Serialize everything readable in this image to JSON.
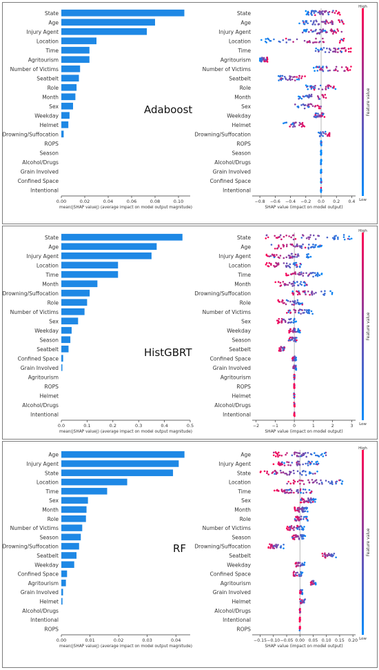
{
  "feature_colorbar": {
    "high": "High",
    "low": "Low",
    "label": "Feature value"
  },
  "colors": {
    "bar": "#1e88e5",
    "high": "#ff0052",
    "low": "#008bfb"
  },
  "chart_data": [
    {
      "type": "bar",
      "orientation": "horizontal",
      "model_label": "Adaboost",
      "categories": [
        "State",
        "Age",
        "Injury Agent",
        "Location",
        "Time",
        "Agritourism",
        "Number of Victims",
        "Seatbelt",
        "Role",
        "Month",
        "Sex",
        "Weekday",
        "Helmet",
        "Drowning/Suffocation",
        "ROPS",
        "Season",
        "Alcohol/Drugs",
        "Grain Involved",
        "Confined Space",
        "Intentional"
      ],
      "values": [
        0.105,
        0.08,
        0.073,
        0.03,
        0.024,
        0.024,
        0.016,
        0.015,
        0.013,
        0.012,
        0.01,
        0.007,
        0.006,
        0.002,
        0,
        0,
        0,
        0,
        0,
        0
      ],
      "xlim": [
        0,
        0.11
      ],
      "xticks": [
        "0.00",
        "0.02",
        "0.04",
        "0.06",
        "0.08",
        "0.10"
      ],
      "xtick_values": [
        0,
        0.02,
        0.04,
        0.06,
        0.08,
        0.1
      ],
      "xlabel": "mean(|SHAP value|) (average impact on model output magnitude)"
    },
    {
      "type": "scatter",
      "subtype": "beeswarm",
      "model_label": "Adaboost",
      "categories": [
        "State",
        "Age",
        "Injury Agent",
        "Location",
        "Time",
        "Agritourism",
        "Number of Victims",
        "Seatbelt",
        "Role",
        "Month",
        "Sex",
        "Weekday",
        "Helmet",
        "Drowning/Suffocation",
        "ROPS",
        "Season",
        "Alcohol/Drugs",
        "Grain Involved",
        "Confined Space",
        "Intentional"
      ],
      "spread": [
        [
          -0.2,
          0.25
        ],
        [
          -0.3,
          0.3
        ],
        [
          -0.25,
          0.28
        ],
        [
          -0.8,
          0.3
        ],
        [
          -0.1,
          0.4
        ],
        [
          -0.8,
          -0.7
        ],
        [
          -0.1,
          0.4
        ],
        [
          -0.6,
          -0.2
        ],
        [
          -0.2,
          0.2
        ],
        [
          -0.3,
          0.1
        ],
        [
          -0.35,
          0.0
        ],
        [
          -0.1,
          0.05
        ],
        [
          -0.5,
          -0.2
        ],
        [
          -0.05,
          0.12
        ],
        [
          0,
          0
        ],
        [
          0,
          0
        ],
        [
          0,
          0
        ],
        [
          0,
          0
        ],
        [
          0,
          0
        ],
        [
          0,
          0
        ]
      ],
      "xlim": [
        -0.9,
        0.45
      ],
      "xticks": [
        "−0.8",
        "−0.6",
        "−0.4",
        "−0.2",
        "0.0",
        "0.2",
        "0.4"
      ],
      "xtick_values": [
        -0.8,
        -0.6,
        -0.4,
        -0.2,
        0,
        0.2,
        0.4
      ],
      "xlabel": "SHAP value (impact on model output)"
    },
    {
      "type": "bar",
      "orientation": "horizontal",
      "model_label": "HistGBRT",
      "categories": [
        "State",
        "Age",
        "Injury Agent",
        "Location",
        "Time",
        "Month",
        "Drowning/Suffocation",
        "Role",
        "Number of Victims",
        "Sex",
        "Weekday",
        "Season",
        "Seatbelt",
        "Confined Space",
        "Grain Involved",
        "Agritourism",
        "ROPS",
        "Helmet",
        "Alcohol/Drugs",
        "Intentional"
      ],
      "values": [
        0.47,
        0.37,
        0.35,
        0.22,
        0.22,
        0.14,
        0.11,
        0.1,
        0.09,
        0.065,
        0.04,
        0.035,
        0.028,
        0.007,
        0.004,
        0,
        0,
        0,
        0,
        0
      ],
      "xlim": [
        0,
        0.5
      ],
      "xticks": [
        "0.0",
        "0.1",
        "0.2",
        "0.3",
        "0.4",
        "0.5"
      ],
      "xtick_values": [
        0,
        0.1,
        0.2,
        0.3,
        0.4,
        0.5
      ],
      "xlabel": "mean(|SHAP value|) (average impact on model output magnitude)"
    },
    {
      "type": "scatter",
      "subtype": "beeswarm",
      "model_label": "HistGBRT",
      "categories": [
        "State",
        "Age",
        "Injury Agent",
        "Location",
        "Time",
        "Month",
        "Drowning/Suffocation",
        "Role",
        "Number of Victims",
        "Sex",
        "Weekday",
        "Season",
        "Seatbelt",
        "Confined Space",
        "Grain Involved",
        "Agritourism",
        "ROPS",
        "Helmet",
        "Alcohol/Drugs",
        "Intentional"
      ],
      "spread": [
        [
          -1.5,
          3.0
        ],
        [
          -1.2,
          1.5
        ],
        [
          -1.5,
          1.0
        ],
        [
          -1.5,
          0.4
        ],
        [
          -0.5,
          1.5
        ],
        [
          -1.0,
          0.7
        ],
        [
          -0.2,
          2.1
        ],
        [
          -0.9,
          0.5
        ],
        [
          -0.5,
          1.0
        ],
        [
          -0.9,
          0.1
        ],
        [
          -0.3,
          0.3
        ],
        [
          -0.3,
          0.2
        ],
        [
          -0.8,
          -0.5
        ],
        [
          -0.1,
          0.1
        ],
        [
          -0.1,
          0.1
        ],
        [
          0,
          0
        ],
        [
          0,
          0
        ],
        [
          0,
          0
        ],
        [
          0,
          0
        ],
        [
          0,
          0
        ]
      ],
      "xlim": [
        -2.2,
        3.2
      ],
      "xticks": [
        "−2",
        "−1",
        "0",
        "1",
        "2",
        "3"
      ],
      "xtick_values": [
        -2,
        -1,
        0,
        1,
        2,
        3
      ],
      "xlabel": "SHAP value (impact on model output)"
    },
    {
      "type": "bar",
      "orientation": "horizontal",
      "model_label": "RF",
      "categories": [
        "Age",
        "Injury Agent",
        "State",
        "Location",
        "Time",
        "Sex",
        "Month",
        "Role",
        "Number of Victims",
        "Season",
        "Drowning/Suffocation",
        "Seatbelt",
        "Weekday",
        "Confined Space",
        "Agritourism",
        "Grain Involved",
        "Helmet",
        "Alcohol/Drugs",
        "Intentional",
        "ROPS"
      ],
      "values": [
        0.043,
        0.041,
        0.039,
        0.023,
        0.016,
        0.0093,
        0.0088,
        0.0086,
        0.0073,
        0.0068,
        0.0062,
        0.0053,
        0.0045,
        0.002,
        0.0016,
        0.0006,
        0.0004,
        0,
        0,
        0
      ],
      "xlim": [
        0,
        0.045
      ],
      "xticks": [
        "0.00",
        "0.01",
        "0.02",
        "0.03",
        "0.04"
      ],
      "xtick_values": [
        0,
        0.01,
        0.02,
        0.03,
        0.04
      ],
      "xlabel": "mean(|SHAP value|) (average impact on model output magnitude)"
    },
    {
      "type": "scatter",
      "subtype": "beeswarm",
      "model_label": "RF",
      "categories": [
        "Age",
        "Injury Agent",
        "State",
        "Location",
        "Time",
        "Sex",
        "Month",
        "Role",
        "Number of Victims",
        "Season",
        "Drowning/Suffocation",
        "Seatbelt",
        "Weekday",
        "Confined Space",
        "Agritourism",
        "Grain Involved",
        "Helmet",
        "Alcohol/Drugs",
        "Intentional",
        "ROPS"
      ],
      "spread": [
        [
          -0.1,
          0.1
        ],
        [
          -0.1,
          0.07
        ],
        [
          -0.15,
          0.07
        ],
        [
          -0.05,
          0.18
        ],
        [
          -0.1,
          0.05
        ],
        [
          0.0,
          0.06
        ],
        [
          -0.02,
          0.03
        ],
        [
          -0.02,
          0.03
        ],
        [
          -0.05,
          0.02
        ],
        [
          -0.03,
          0.02
        ],
        [
          -0.12,
          -0.06
        ],
        [
          0.08,
          0.14
        ],
        [
          -0.02,
          0.02
        ],
        [
          -0.03,
          0.01
        ],
        [
          0.04,
          0.06
        ],
        [
          0.0,
          0.01
        ],
        [
          0.0,
          0.02
        ],
        [
          0,
          0
        ],
        [
          0,
          0
        ],
        [
          0,
          0
        ]
      ],
      "xlim": [
        -0.18,
        0.21
      ],
      "xticks": [
        "−0.15",
        "−0.10",
        "−0.05",
        "0.00",
        "0.05",
        "0.10",
        "0.15",
        "0.20"
      ],
      "xtick_values": [
        -0.15,
        -0.1,
        -0.05,
        0,
        0.05,
        0.1,
        0.15,
        0.2
      ],
      "xlabel": "SHAP value (impact on model output)"
    }
  ]
}
